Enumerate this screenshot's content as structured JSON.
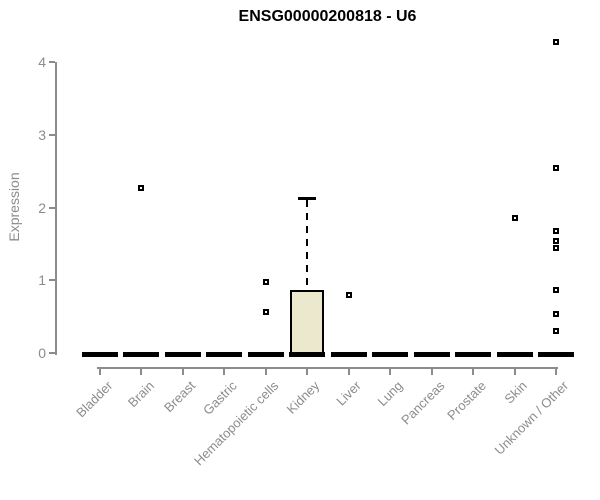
{
  "chart_data": {
    "type": "boxplot",
    "title": "ENSG00000200818 - U6",
    "ylabel": "Expression",
    "xlabel": "",
    "yticks": [
      0,
      1,
      2,
      3,
      4
    ],
    "ylim": [
      0,
      4
    ],
    "grid": false,
    "legend": "none",
    "categories": [
      "Bladder",
      "Brain",
      "Breast",
      "Gastric",
      "Hematopoietic cells",
      "Kidney",
      "Liver",
      "Lung",
      "Pancreas",
      "Prostate",
      "Skin",
      "Unknown / Other"
    ],
    "boxes": [
      {
        "category": "Bladder",
        "q1": 0,
        "median": 0,
        "q3": 0,
        "whisker_low": 0,
        "whisker_high": 0,
        "outliers": []
      },
      {
        "category": "Brain",
        "q1": 0,
        "median": 0,
        "q3": 0,
        "whisker_low": 0,
        "whisker_high": 0,
        "outliers": [
          2.27
        ]
      },
      {
        "category": "Breast",
        "q1": 0,
        "median": 0,
        "q3": 0,
        "whisker_low": 0,
        "whisker_high": 0,
        "outliers": []
      },
      {
        "category": "Gastric",
        "q1": 0,
        "median": 0,
        "q3": 0,
        "whisker_low": 0,
        "whisker_high": 0,
        "outliers": []
      },
      {
        "category": "Hematopoietic cells",
        "q1": 0,
        "median": 0,
        "q3": 0,
        "whisker_low": 0,
        "whisker_high": 0,
        "outliers": [
          0.97,
          0.56
        ]
      },
      {
        "category": "Kidney",
        "q1": 0,
        "median": 0,
        "q3": 0.87,
        "whisker_low": 0,
        "whisker_high": 2.13,
        "outliers": []
      },
      {
        "category": "Liver",
        "q1": 0,
        "median": 0,
        "q3": 0,
        "whisker_low": 0,
        "whisker_high": 0,
        "outliers": [
          0.8
        ]
      },
      {
        "category": "Lung",
        "q1": 0,
        "median": 0,
        "q3": 0,
        "whisker_low": 0,
        "whisker_high": 0,
        "outliers": []
      },
      {
        "category": "Pancreas",
        "q1": 0,
        "median": 0,
        "q3": 0,
        "whisker_low": 0,
        "whisker_high": 0,
        "outliers": []
      },
      {
        "category": "Prostate",
        "q1": 0,
        "median": 0,
        "q3": 0,
        "whisker_low": 0,
        "whisker_high": 0,
        "outliers": []
      },
      {
        "category": "Skin",
        "q1": 0,
        "median": 0,
        "q3": 0,
        "whisker_low": 0,
        "whisker_high": 0,
        "outliers": [
          1.86
        ]
      },
      {
        "category": "Unknown / Other",
        "q1": 0,
        "median": 0,
        "q3": 0,
        "whisker_low": 0,
        "whisker_high": 0,
        "outliers": [
          4.27,
          2.54,
          1.68,
          1.54,
          1.45,
          0.87,
          0.53,
          0.3
        ]
      }
    ],
    "colors": {
      "box_fill": "#ECE8CD",
      "box_stroke": "#000000",
      "axis": "#8C8C8C",
      "tick_label": "#8C8C8C",
      "title": "#000000",
      "background": "#FFFFFF"
    }
  }
}
